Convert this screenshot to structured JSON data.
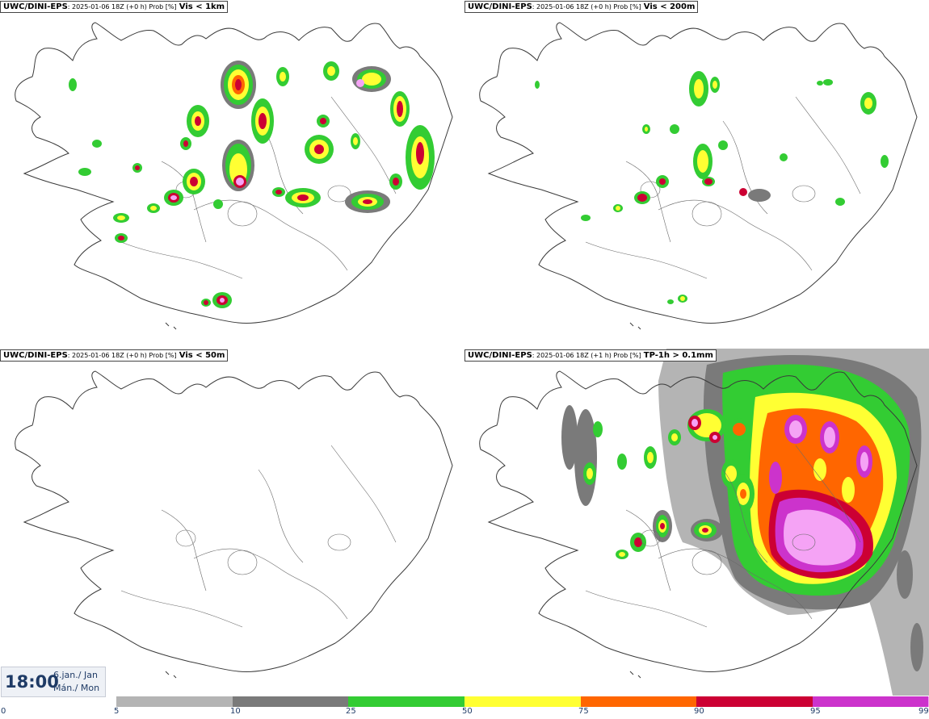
{
  "panels": [
    {
      "model": "UWC/DINI-EPS",
      "meta": ": 2025-01-06 18Z (+0 h) Prob [%]",
      "param": "Vis < 1km"
    },
    {
      "model": "UWC/DINI-EPS",
      "meta": ": 2025-01-06 18Z (+0 h) Prob [%]",
      "param": "Vis < 200m"
    },
    {
      "model": "UWC/DINI-EPS",
      "meta": ": 2025-01-06 18Z (+0 h) Prob [%]",
      "param": "Vis < 50m"
    },
    {
      "model": "UWC/DINI-EPS",
      "meta": ": 2025-01-06 18Z (+1 h) Prob [%]",
      "param": "TP-1h > 0.1mm"
    }
  ],
  "timebox": {
    "time": "18:00",
    "date_line": "6.jan./ Jan",
    "day_line": "Mán./ Mon"
  },
  "legend": {
    "ticks": [
      "0",
      "5",
      "10",
      "25",
      "50",
      "75",
      "90",
      "95",
      "99"
    ],
    "colors": [
      "#ffffff",
      "#b4b4b4",
      "#7a7a7a",
      "#33cc33",
      "#ffff33",
      "#ff6600",
      "#cc0033",
      "#cc33cc",
      "#f5a3f5"
    ]
  }
}
